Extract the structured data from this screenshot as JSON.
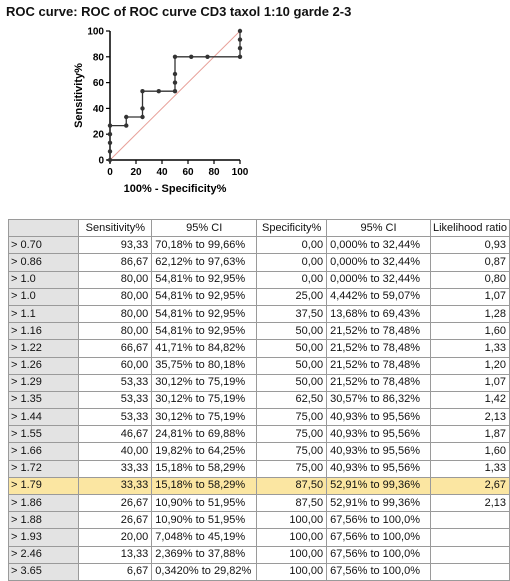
{
  "title": "ROC curve: ROC of ROC curve CD3 taxol 1:10 garde 2-3",
  "chart_data": {
    "type": "line",
    "xlabel": "100% - Specificity%",
    "ylabel": "Sensitivity%",
    "xlim": [
      0,
      100
    ],
    "ylim": [
      0,
      100
    ],
    "x_ticks": [
      "0",
      "20",
      "40",
      "60",
      "80",
      "100"
    ],
    "y_ticks": [
      "0",
      "20",
      "40",
      "60",
      "80",
      "100"
    ],
    "grid": false,
    "series": [
      {
        "x": [
          0,
          0,
          0,
          0,
          0,
          12.5,
          12.5,
          25,
          25,
          25,
          37.5,
          50,
          50,
          50,
          50,
          62.5,
          75,
          100,
          100,
          100,
          100
        ],
        "y": [
          0,
          6.67,
          13.33,
          20,
          26.67,
          26.67,
          33.33,
          33.33,
          40,
          53.33,
          53.33,
          53.33,
          60,
          66.67,
          80,
          80,
          80,
          80,
          86.67,
          93.33,
          100
        ]
      }
    ],
    "reference_line": {
      "x": [
        0,
        100
      ],
      "y": [
        0,
        100
      ],
      "color": "#e8a19a"
    },
    "curve_color": "#333333"
  },
  "table": {
    "headers": [
      "",
      "Sensitivity%",
      "95% CI",
      "Specificity%",
      "95% CI",
      "Likelihood ratio"
    ],
    "rows": [
      [
        "> 0.70",
        "93,33",
        "70,18% to 99,66%",
        "0,00",
        "0,000% to 32,44%",
        "0,93"
      ],
      [
        "> 0.86",
        "86,67",
        "62,12% to 97,63%",
        "0,00",
        "0,000% to 32,44%",
        "0,87"
      ],
      [
        "> 1.0",
        "80,00",
        "54,81% to 92,95%",
        "0,00",
        "0,000% to 32,44%",
        "0,80"
      ],
      [
        "> 1.0",
        "80,00",
        "54,81% to 92,95%",
        "25,00",
        "4,442% to 59,07%",
        "1,07"
      ],
      [
        "> 1.1",
        "80,00",
        "54,81% to 92,95%",
        "37,50",
        "13,68% to 69,43%",
        "1,28"
      ],
      [
        "> 1.16",
        "80,00",
        "54,81% to 92,95%",
        "50,00",
        "21,52% to 78,48%",
        "1,60"
      ],
      [
        "> 1.22",
        "66,67",
        "41,71% to 84,82%",
        "50,00",
        "21,52% to 78,48%",
        "1,33"
      ],
      [
        "> 1.26",
        "60,00",
        "35,75% to 80,18%",
        "50,00",
        "21,52% to 78,48%",
        "1,20"
      ],
      [
        "> 1.29",
        "53,33",
        "30,12% to 75,19%",
        "50,00",
        "21,52% to 78,48%",
        "1,07"
      ],
      [
        "> 1.35",
        "53,33",
        "30,12% to 75,19%",
        "62,50",
        "30,57% to 86,32%",
        "1,42"
      ],
      [
        "> 1.44",
        "53,33",
        "30,12% to 75,19%",
        "75,00",
        "40,93% to 95,56%",
        "2,13"
      ],
      [
        "> 1.55",
        "46,67",
        "24,81% to 69,88%",
        "75,00",
        "40,93% to 95,56%",
        "1,87"
      ],
      [
        "> 1.66",
        "40,00",
        "19,82% to 64,25%",
        "75,00",
        "40,93% to 95,56%",
        "1,60"
      ],
      [
        "> 1.72",
        "33,33",
        "15,18% to 58,29%",
        "75,00",
        "40,93% to 95,56%",
        "1,33"
      ],
      [
        "> 1.79",
        "33,33",
        "15,18% to 58,29%",
        "87,50",
        "52,91% to 99,36%",
        "2,67"
      ],
      [
        "> 1.86",
        "26,67",
        "10,90% to 51,95%",
        "87,50",
        "52,91% to 99,36%",
        "2,13"
      ],
      [
        "> 1.88",
        "26,67",
        "10,90% to 51,95%",
        "100,00",
        "67,56% to 100,0%",
        ""
      ],
      [
        "> 1.93",
        "20,00",
        "7,048% to 45,19%",
        "100,00",
        "67,56% to 100,0%",
        ""
      ],
      [
        "> 2.46",
        "13,33",
        "2,369% to 37,88%",
        "100,00",
        "67,56% to 100,0%",
        ""
      ],
      [
        "> 3.65",
        "6,67",
        "0,3420% to 29,82%",
        "100,00",
        "67,56% to 100,0%",
        ""
      ]
    ],
    "highlight_row": 14,
    "highlight_color": "#fbe6a2"
  }
}
